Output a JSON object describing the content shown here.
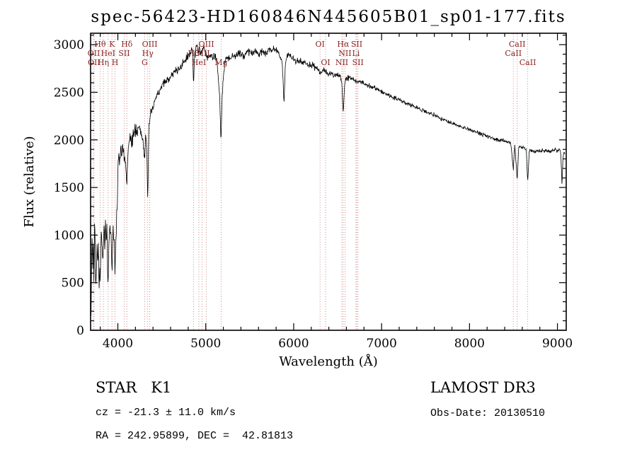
{
  "plot": {
    "title": "spec-56423-HD160846N445605B01_sp01-177.fits",
    "xlabel": "Wavelength (Å)",
    "ylabel": "Flux (relative)"
  },
  "footer": {
    "class_label": "STAR   K1",
    "survey": "LAMOST DR3",
    "cz": "cz = -21.3 ± 11.0 km/s",
    "obs_date": "Obs-Date: 20130510",
    "radec": "RA = 242.95899, DEC =  42.81813"
  },
  "colors": {
    "spectrum": "#000000",
    "frame": "#000000",
    "marker_line": "#c97b7b",
    "marker_label": "#8b2323"
  },
  "chart_data": {
    "type": "line",
    "title": "spec-56423-HD160846N445605B01_sp01-177.fits",
    "xlabel": "Wavelength (Å)",
    "ylabel": "Flux (relative)",
    "xlim": [
      3690,
      9100
    ],
    "ylim": [
      0,
      3120
    ],
    "xticks": [
      4000,
      5000,
      6000,
      7000,
      8000,
      9000
    ],
    "yticks": [
      0,
      500,
      1000,
      1500,
      2000,
      2500,
      3000
    ],
    "xminor_step": 200,
    "yminor_step": 100,
    "grid": false,
    "legend": "none",
    "line_markers": [
      {
        "wavelength": 3726,
        "label": "OII",
        "row": 1
      },
      {
        "wavelength": 3729,
        "label": "OII",
        "row": 2
      },
      {
        "wavelength": 3798,
        "label": "Hθ",
        "row": 0
      },
      {
        "wavelength": 3835,
        "label": "Hη",
        "row": 2
      },
      {
        "wavelength": 3889,
        "label": "HeI",
        "row": 1
      },
      {
        "wavelength": 3933,
        "label": "K",
        "row": 0
      },
      {
        "wavelength": 3968,
        "label": "H",
        "row": 2
      },
      {
        "wavelength": 4072,
        "label": "SII",
        "row": 1
      },
      {
        "wavelength": 4102,
        "label": "Hδ",
        "row": 0
      },
      {
        "wavelength": 4305,
        "label": "G",
        "row": 2
      },
      {
        "wavelength": 4340,
        "label": "Hγ",
        "row": 1
      },
      {
        "wavelength": 4363,
        "label": "OIII",
        "row": 0
      },
      {
        "wavelength": 4861,
        "label": "Hβ",
        "row": 1
      },
      {
        "wavelength": 4922,
        "label": "HeI",
        "row": 2
      },
      {
        "wavelength": 4959,
        "label": "OIII",
        "row": 1
      },
      {
        "wavelength": 5007,
        "label": "OIII",
        "row": 0
      },
      {
        "wavelength": 5175,
        "label": "Mg",
        "row": 2
      },
      {
        "wavelength": 6300,
        "label": "OI",
        "row": 0
      },
      {
        "wavelength": 6363,
        "label": "OI",
        "row": 2
      },
      {
        "wavelength": 6548,
        "label": "NII",
        "row": 2
      },
      {
        "wavelength": 6563,
        "label": "Hα",
        "row": 0
      },
      {
        "wavelength": 6584,
        "label": "NII",
        "row": 1
      },
      {
        "wavelength": 6708,
        "label": "Li",
        "row": 1
      },
      {
        "wavelength": 6717,
        "label": "SII",
        "row": 0
      },
      {
        "wavelength": 6731,
        "label": "SII",
        "row": 2
      },
      {
        "wavelength": 8498,
        "label": "CaII",
        "row": 1
      },
      {
        "wavelength": 8542,
        "label": "CaII",
        "row": 0
      },
      {
        "wavelength": 8662,
        "label": "CaII",
        "row": 2
      }
    ],
    "series": [
      {
        "name": "spectrum",
        "points": [
          [
            3695,
            120
          ],
          [
            3702,
            750
          ],
          [
            3708,
            1000
          ],
          [
            3715,
            620
          ],
          [
            3722,
            1080
          ],
          [
            3728,
            500
          ],
          [
            3735,
            1120
          ],
          [
            3742,
            1000
          ],
          [
            3748,
            430
          ],
          [
            3755,
            620
          ],
          [
            3762,
            880
          ],
          [
            3770,
            700
          ],
          [
            3778,
            950
          ],
          [
            3785,
            420
          ],
          [
            3792,
            600
          ],
          [
            3800,
            520
          ],
          [
            3808,
            880
          ],
          [
            3815,
            1020
          ],
          [
            3822,
            860
          ],
          [
            3830,
            700
          ],
          [
            3838,
            980
          ],
          [
            3845,
            1120
          ],
          [
            3852,
            820
          ],
          [
            3860,
            1160
          ],
          [
            3868,
            920
          ],
          [
            3875,
            1140
          ],
          [
            3882,
            700
          ],
          [
            3889,
            460
          ],
          [
            3896,
            820
          ],
          [
            3904,
            1060
          ],
          [
            3912,
            1140
          ],
          [
            3920,
            1040
          ],
          [
            3926,
            880
          ],
          [
            3933,
            520
          ],
          [
            3940,
            900
          ],
          [
            3948,
            1060
          ],
          [
            3955,
            960
          ],
          [
            3962,
            780
          ],
          [
            3968,
            560
          ],
          [
            3975,
            860
          ],
          [
            3982,
            1060
          ],
          [
            3990,
            1240
          ],
          [
            4000,
            1650
          ],
          [
            4010,
            1880
          ],
          [
            4020,
            1760
          ],
          [
            4032,
            1950
          ],
          [
            4045,
            1820
          ],
          [
            4058,
            1960
          ],
          [
            4070,
            1830
          ],
          [
            4082,
            1760
          ],
          [
            4092,
            1680
          ],
          [
            4102,
            1460
          ],
          [
            4112,
            1800
          ],
          [
            4125,
            1950
          ],
          [
            4140,
            2020
          ],
          [
            4160,
            1980
          ],
          [
            4180,
            2070
          ],
          [
            4200,
            2120
          ],
          [
            4220,
            2060
          ],
          [
            4240,
            2160
          ],
          [
            4260,
            2080
          ],
          [
            4280,
            2020
          ],
          [
            4295,
            1900
          ],
          [
            4305,
            1820
          ],
          [
            4318,
            2060
          ],
          [
            4330,
            1900
          ],
          [
            4340,
            1320
          ],
          [
            4352,
            2120
          ],
          [
            4365,
            2220
          ],
          [
            4380,
            2280
          ],
          [
            4400,
            2340
          ],
          [
            4425,
            2420
          ],
          [
            4450,
            2480
          ],
          [
            4475,
            2520
          ],
          [
            4500,
            2560
          ],
          [
            4530,
            2600
          ],
          [
            4560,
            2620
          ],
          [
            4590,
            2660
          ],
          [
            4620,
            2680
          ],
          [
            4650,
            2720
          ],
          [
            4680,
            2740
          ],
          [
            4710,
            2760
          ],
          [
            4740,
            2800
          ],
          [
            4770,
            2840
          ],
          [
            4800,
            2880
          ],
          [
            4830,
            2920
          ],
          [
            4848,
            2960
          ],
          [
            4861,
            2560
          ],
          [
            4875,
            2940
          ],
          [
            4890,
            3000
          ],
          [
            4905,
            2960
          ],
          [
            4920,
            2920
          ],
          [
            4935,
            2960
          ],
          [
            4950,
            2900
          ],
          [
            4965,
            2940
          ],
          [
            4980,
            2960
          ],
          [
            5000,
            2900
          ],
          [
            5020,
            2860
          ],
          [
            5040,
            2880
          ],
          [
            5060,
            2900
          ],
          [
            5080,
            2860
          ],
          [
            5100,
            2880
          ],
          [
            5120,
            2840
          ],
          [
            5140,
            2700
          ],
          [
            5160,
            2420
          ],
          [
            5172,
            1960
          ],
          [
            5185,
            2400
          ],
          [
            5200,
            2680
          ],
          [
            5215,
            2800
          ],
          [
            5230,
            2860
          ],
          [
            5250,
            2880
          ],
          [
            5275,
            2840
          ],
          [
            5300,
            2900
          ],
          [
            5330,
            2860
          ],
          [
            5360,
            2900
          ],
          [
            5400,
            2920
          ],
          [
            5440,
            2880
          ],
          [
            5480,
            2940
          ],
          [
            5520,
            2900
          ],
          [
            5560,
            2940
          ],
          [
            5600,
            2900
          ],
          [
            5640,
            2940
          ],
          [
            5680,
            2900
          ],
          [
            5720,
            2940
          ],
          [
            5760,
            2960
          ],
          [
            5800,
            2940
          ],
          [
            5840,
            2900
          ],
          [
            5870,
            2820
          ],
          [
            5890,
            2360
          ],
          [
            5905,
            2800
          ],
          [
            5925,
            2880
          ],
          [
            5950,
            2900
          ],
          [
            5980,
            2860
          ],
          [
            6010,
            2840
          ],
          [
            6040,
            2820
          ],
          [
            6070,
            2840
          ],
          [
            6100,
            2820
          ],
          [
            6140,
            2800
          ],
          [
            6180,
            2790
          ],
          [
            6220,
            2780
          ],
          [
            6260,
            2760
          ],
          [
            6300,
            2700
          ],
          [
            6340,
            2730
          ],
          [
            6380,
            2710
          ],
          [
            6420,
            2700
          ],
          [
            6460,
            2680
          ],
          [
            6500,
            2670
          ],
          [
            6530,
            2660
          ],
          [
            6548,
            2600
          ],
          [
            6563,
            2260
          ],
          [
            6580,
            2600
          ],
          [
            6600,
            2660
          ],
          [
            6630,
            2650
          ],
          [
            6660,
            2640
          ],
          [
            6690,
            2630
          ],
          [
            6720,
            2620
          ],
          [
            6750,
            2610
          ],
          [
            6790,
            2600
          ],
          [
            6830,
            2580
          ],
          [
            6870,
            2560
          ],
          [
            6910,
            2550
          ],
          [
            6950,
            2530
          ],
          [
            7000,
            2510
          ],
          [
            7060,
            2480
          ],
          [
            7120,
            2450
          ],
          [
            7180,
            2430
          ],
          [
            7240,
            2400
          ],
          [
            7300,
            2380
          ],
          [
            7360,
            2350
          ],
          [
            7420,
            2330
          ],
          [
            7480,
            2300
          ],
          [
            7540,
            2280
          ],
          [
            7600,
            2260
          ],
          [
            7660,
            2230
          ],
          [
            7720,
            2210
          ],
          [
            7780,
            2180
          ],
          [
            7840,
            2160
          ],
          [
            7900,
            2140
          ],
          [
            7960,
            2120
          ],
          [
            8020,
            2100
          ],
          [
            8080,
            2080
          ],
          [
            8140,
            2060
          ],
          [
            8200,
            2040
          ],
          [
            8260,
            2020
          ],
          [
            8320,
            2000
          ],
          [
            8380,
            1990
          ],
          [
            8430,
            1980
          ],
          [
            8470,
            1960
          ],
          [
            8498,
            1680
          ],
          [
            8515,
            1950
          ],
          [
            8542,
            1580
          ],
          [
            8560,
            1930
          ],
          [
            8590,
            1920
          ],
          [
            8620,
            1910
          ],
          [
            8645,
            1900
          ],
          [
            8662,
            1560
          ],
          [
            8680,
            1890
          ],
          [
            8710,
            1890
          ],
          [
            8740,
            1880
          ],
          [
            8770,
            1890
          ],
          [
            8800,
            1880
          ],
          [
            8830,
            1890
          ],
          [
            8860,
            1880
          ],
          [
            8890,
            1890
          ],
          [
            8915,
            1880
          ],
          [
            8940,
            1890
          ],
          [
            8960,
            1880
          ],
          [
            8980,
            1900
          ],
          [
            9000,
            1880
          ],
          [
            9020,
            1900
          ],
          [
            9038,
            1870
          ],
          [
            9052,
            1520
          ],
          [
            9064,
            1830
          ],
          [
            9078,
            1880
          ],
          [
            9090,
            1840
          ]
        ]
      }
    ],
    "noise_profile": {
      "seed": 42,
      "segments": [
        [
          3690,
          4000,
          110
        ],
        [
          4000,
          4350,
          85
        ],
        [
          4350,
          5000,
          55
        ],
        [
          5000,
          5900,
          50
        ],
        [
          5900,
          6700,
          40
        ],
        [
          6700,
          7600,
          30
        ],
        [
          7600,
          9100,
          25
        ]
      ]
    }
  }
}
